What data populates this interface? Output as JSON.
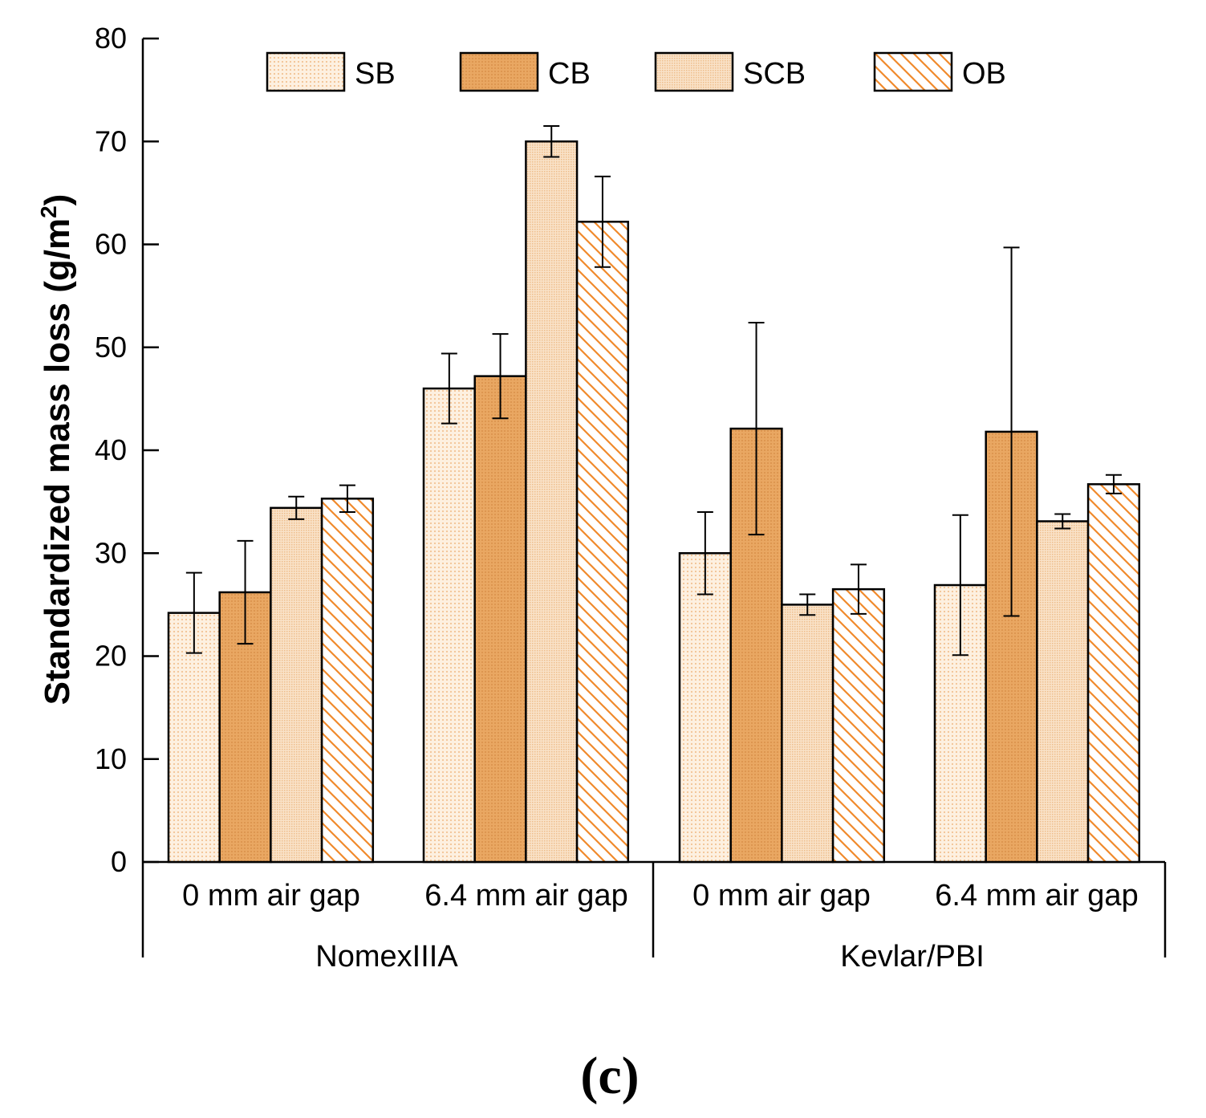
{
  "chart_data": {
    "type": "bar",
    "title": "",
    "ylabel": "Standardized mass loss (g/m²)",
    "ylabel_main": "Standardized mass loss (g/m",
    "ylabel_sup": "2",
    "ylabel_close": ")",
    "ylim": [
      0,
      80
    ],
    "yticks": [
      0,
      10,
      20,
      30,
      40,
      50,
      60,
      70,
      80
    ],
    "groups": [
      {
        "name": "NomexIIIA",
        "subcategories": [
          "0 mm air gap",
          "6.4 mm air gap"
        ]
      },
      {
        "name": "Kevlar/PBI",
        "subcategories": [
          "0 mm air gap",
          "6.4 mm air gap"
        ]
      }
    ],
    "categories": [
      "NomexIIIA 0 mm air gap",
      "NomexIIIA 6.4 mm air gap",
      "Kevlar/PBI 0 mm air gap",
      "Kevlar/PBI 6.4 mm air gap"
    ],
    "series": [
      {
        "name": "SB",
        "pattern": "dots",
        "values": [
          24.2,
          46.0,
          30.0,
          26.9
        ],
        "errors": [
          3.9,
          3.4,
          4.0,
          6.8
        ]
      },
      {
        "name": "CB",
        "pattern": "solid",
        "values": [
          26.2,
          47.2,
          42.1,
          41.8
        ],
        "errors": [
          5.0,
          4.1,
          10.3,
          17.9
        ]
      },
      {
        "name": "SCB",
        "pattern": "fine-dots",
        "values": [
          34.4,
          70.0,
          25.0,
          33.1
        ],
        "errors": [
          1.1,
          1.5,
          1.0,
          0.7
        ]
      },
      {
        "name": "OB",
        "pattern": "hatch",
        "values": [
          35.3,
          62.2,
          26.5,
          36.7
        ],
        "errors": [
          1.3,
          4.4,
          2.4,
          0.9
        ]
      }
    ],
    "legend_position": "top",
    "grid": false
  },
  "caption": "(c)",
  "colors": {
    "bar_fill": "#fdecd6",
    "cb_fill": "#e8a864",
    "scb_fill": "#f6dcc0",
    "hatch": "#f08a2c",
    "dot": "#f3c79b",
    "axis": "#000000"
  }
}
